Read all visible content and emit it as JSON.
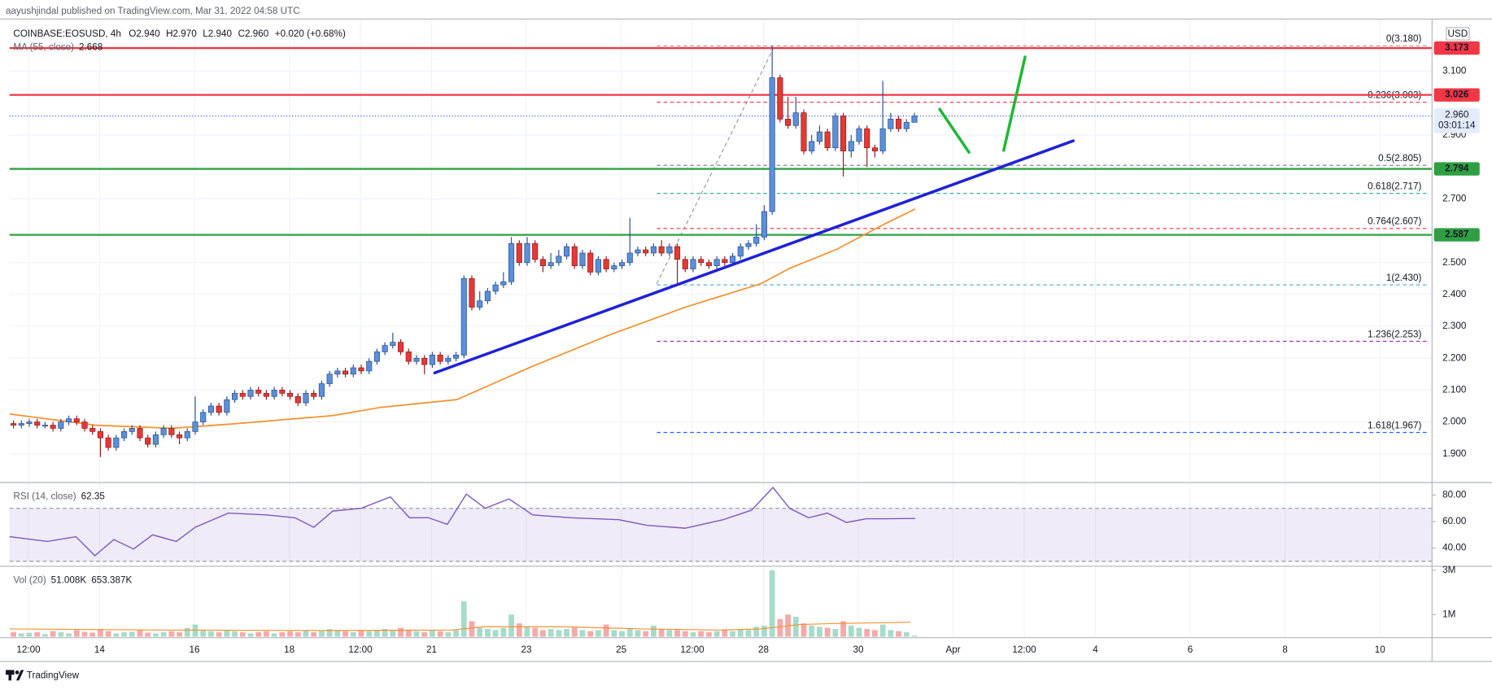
{
  "header": {
    "publisher": "aayushjindal published on TradingView.com, Mar 31, 2022 04:58 UTC",
    "brand": "TradingView"
  },
  "chart_data": {
    "type": "candlestick",
    "symbol": "COINBASE:EOSUSD, 4h",
    "ohlc_text": [
      "O2.940",
      "H2.970",
      "L2.940",
      "C2.960",
      "+0.020 (+0.68%)"
    ],
    "currency": "USD",
    "xlim": [
      0,
      180
    ],
    "xticks": [
      {
        "value": 2.4,
        "label": "12:00"
      },
      {
        "value": 11.4,
        "label": "14"
      },
      {
        "value": 23.4,
        "label": "16"
      },
      {
        "value": 35.4,
        "label": "18"
      },
      {
        "value": 44.4,
        "label": "12:00"
      },
      {
        "value": 53.4,
        "label": "21"
      },
      {
        "value": 65.4,
        "label": "23"
      },
      {
        "value": 77.4,
        "label": "25"
      },
      {
        "value": 86.4,
        "label": "12:00"
      },
      {
        "value": 95.4,
        "label": "28"
      },
      {
        "value": 107.4,
        "label": "30"
      },
      {
        "value": 119.4,
        "label": "Apr"
      },
      {
        "value": 128.4,
        "label": "12:00"
      },
      {
        "value": 137.4,
        "label": "4"
      },
      {
        "value": 149.4,
        "label": "6"
      },
      {
        "value": 161.4,
        "label": "8"
      },
      {
        "value": 173.4,
        "label": "10"
      }
    ],
    "ylim": [
      1.816,
      3.264
    ],
    "yticks": [
      {
        "value": 3.1,
        "label": "3.100"
      },
      {
        "value": 2.9,
        "label": "2.900"
      },
      {
        "value": 2.7,
        "label": "2.700"
      },
      {
        "value": 2.5,
        "label": "2.500"
      },
      {
        "value": 2.4,
        "label": "2.400"
      },
      {
        "value": 2.3,
        "label": "2.300"
      },
      {
        "value": 2.2,
        "label": "2.200"
      },
      {
        "value": 2.1,
        "label": "2.100"
      },
      {
        "value": 2.0,
        "label": "2.000"
      },
      {
        "value": 1.9,
        "label": "1.900"
      }
    ],
    "grid": true,
    "up_color": "#5b8fd9",
    "down_color": "#e53935",
    "open": [
      1.995,
      1.99,
      1.995,
      2.0,
      1.99,
      1.99,
      1.98,
      2.0,
      2.01,
      2.0,
      1.98,
      1.97,
      1.95,
      1.92,
      1.95,
      1.97,
      1.98,
      1.95,
      1.93,
      1.96,
      1.98,
      1.96,
      1.95,
      1.97,
      2.0,
      2.03,
      2.05,
      2.03,
      2.07,
      2.09,
      2.08,
      2.1,
      2.09,
      2.08,
      2.1,
      2.09,
      2.08,
      2.06,
      2.09,
      2.08,
      2.12,
      2.15,
      2.16,
      2.15,
      2.17,
      2.16,
      2.19,
      2.22,
      2.24,
      2.25,
      2.22,
      2.19,
      2.2,
      2.18,
      2.21,
      2.19,
      2.2,
      2.21,
      2.45,
      2.36,
      2.38,
      2.41,
      2.43,
      2.44,
      2.56,
      2.5,
      2.56,
      2.51,
      2.49,
      2.5,
      2.52,
      2.55,
      2.49,
      2.53,
      2.47,
      2.51,
      2.48,
      2.49,
      2.5,
      2.53,
      2.54,
      2.53,
      2.55,
      2.53,
      2.55,
      2.51,
      2.48,
      2.51,
      2.5,
      2.49,
      2.51,
      2.5,
      2.52,
      2.55,
      2.56,
      2.58,
      2.66,
      3.08,
      2.95,
      2.93,
      2.97,
      2.85,
      2.88,
      2.91,
      2.86,
      2.96,
      2.85,
      2.88,
      2.92,
      2.86,
      2.85,
      2.92,
      2.95,
      2.92,
      2.94
    ],
    "high": [
      2.005,
      2.005,
      2.01,
      2.01,
      2.0,
      2.0,
      2.01,
      2.02,
      2.02,
      2.01,
      1.99,
      1.98,
      1.96,
      1.96,
      1.98,
      1.99,
      1.99,
      1.96,
      1.97,
      1.99,
      1.99,
      1.97,
      1.98,
      2.08,
      2.04,
      2.06,
      2.06,
      2.08,
      2.1,
      2.1,
      2.11,
      2.11,
      2.1,
      2.11,
      2.11,
      2.1,
      2.09,
      2.1,
      2.1,
      2.13,
      2.16,
      2.17,
      2.17,
      2.18,
      2.18,
      2.2,
      2.23,
      2.25,
      2.28,
      2.26,
      2.23,
      2.21,
      2.21,
      2.22,
      2.22,
      2.21,
      2.22,
      2.46,
      2.46,
      2.41,
      2.42,
      2.44,
      2.47,
      2.58,
      2.57,
      2.58,
      2.57,
      2.52,
      2.53,
      2.54,
      2.56,
      2.56,
      2.54,
      2.54,
      2.52,
      2.52,
      2.5,
      2.51,
      2.64,
      2.55,
      2.55,
      2.56,
      2.57,
      2.56,
      2.56,
      2.52,
      2.52,
      2.52,
      2.51,
      2.52,
      2.52,
      2.53,
      2.56,
      2.57,
      2.62,
      2.68,
      3.18,
      3.09,
      3.02,
      3.02,
      2.98,
      2.9,
      2.93,
      2.92,
      2.97,
      2.97,
      2.9,
      2.93,
      2.93,
      2.87,
      3.07,
      2.97,
      2.96,
      2.95,
      2.97
    ],
    "low": [
      1.98,
      1.98,
      1.985,
      1.98,
      1.98,
      1.97,
      1.97,
      1.99,
      1.99,
      1.97,
      1.96,
      1.89,
      1.91,
      1.91,
      1.94,
      1.96,
      1.94,
      1.92,
      1.92,
      1.95,
      1.95,
      1.93,
      1.94,
      1.96,
      1.99,
      2.02,
      2.02,
      2.02,
      2.06,
      2.07,
      2.07,
      2.08,
      2.07,
      2.07,
      2.08,
      2.07,
      2.05,
      2.05,
      2.07,
      2.07,
      2.11,
      2.14,
      2.14,
      2.14,
      2.15,
      2.15,
      2.18,
      2.21,
      2.23,
      2.21,
      2.18,
      2.18,
      2.15,
      2.17,
      2.18,
      2.18,
      2.19,
      2.2,
      2.35,
      2.35,
      2.37,
      2.4,
      2.42,
      2.43,
      2.49,
      2.49,
      2.5,
      2.47,
      2.48,
      2.49,
      2.51,
      2.48,
      2.48,
      2.46,
      2.46,
      2.47,
      2.47,
      2.48,
      2.49,
      2.52,
      2.52,
      2.52,
      2.52,
      2.52,
      2.43,
      2.47,
      2.47,
      2.49,
      2.48,
      2.48,
      2.49,
      2.49,
      2.51,
      2.54,
      2.55,
      2.57,
      2.65,
      2.94,
      2.92,
      2.92,
      2.84,
      2.84,
      2.87,
      2.85,
      2.85,
      2.77,
      2.83,
      2.87,
      2.8,
      2.83,
      2.84,
      2.91,
      2.91,
      2.91,
      2.94
    ],
    "close": [
      1.99,
      1.995,
      2.0,
      1.99,
      1.99,
      1.98,
      2.0,
      2.01,
      2.0,
      1.98,
      1.97,
      1.95,
      1.92,
      1.95,
      1.97,
      1.98,
      1.95,
      1.93,
      1.96,
      1.98,
      1.96,
      1.95,
      1.97,
      2.0,
      2.03,
      2.05,
      2.03,
      2.07,
      2.09,
      2.08,
      2.1,
      2.09,
      2.08,
      2.1,
      2.09,
      2.08,
      2.06,
      2.09,
      2.08,
      2.12,
      2.15,
      2.16,
      2.15,
      2.17,
      2.16,
      2.19,
      2.22,
      2.24,
      2.25,
      2.22,
      2.19,
      2.2,
      2.18,
      2.21,
      2.19,
      2.2,
      2.21,
      2.45,
      2.36,
      2.38,
      2.41,
      2.43,
      2.44,
      2.56,
      2.5,
      2.56,
      2.51,
      2.49,
      2.5,
      2.52,
      2.55,
      2.49,
      2.53,
      2.47,
      2.51,
      2.48,
      2.49,
      2.5,
      2.53,
      2.54,
      2.53,
      2.55,
      2.53,
      2.55,
      2.51,
      2.48,
      2.51,
      2.5,
      2.49,
      2.51,
      2.5,
      2.52,
      2.55,
      2.56,
      2.58,
      2.66,
      3.08,
      2.95,
      2.93,
      2.97,
      2.85,
      2.88,
      2.91,
      2.86,
      2.96,
      2.85,
      2.88,
      2.92,
      2.86,
      2.85,
      2.92,
      2.95,
      2.92,
      2.94,
      2.96
    ],
    "ma": {
      "name": "MA (55, close)",
      "value_label": "2.668",
      "color": "#f5922f",
      "x": [
        0,
        10.8,
        20.5,
        28.9,
        36.1,
        40.9,
        47,
        56.6,
        66.2,
        75.9,
        85.5,
        95.1,
        98.7,
        104.7,
        110.8,
        114.6
      ],
      "values": [
        2.025,
        1.99,
        1.98,
        1.995,
        2.01,
        2.02,
        2.046,
        2.07,
        2.175,
        2.273,
        2.36,
        2.434,
        2.482,
        2.542,
        2.622,
        2.668
      ]
    },
    "levels": [
      {
        "price": 3.173,
        "color": "#f23645"
      },
      {
        "price": 3.026,
        "color": "#f23645"
      },
      {
        "price": 2.794,
        "color": "#2ea043"
      },
      {
        "price": 2.587,
        "color": "#2ea043"
      }
    ],
    "last": {
      "price": 2.96,
      "label": "2.960",
      "countdown": "03:01:14",
      "color": "#2962ff"
    },
    "fib": {
      "x": [
        81.9,
        179.4
      ],
      "levels": [
        {
          "label": "0(3.180)",
          "value": 3.18,
          "color": "#9598a1"
        },
        {
          "label": "0.236(3.003)",
          "value": 3.003,
          "color": "#f23645"
        },
        {
          "label": "0.5(2.805)",
          "value": 2.805,
          "color": "#787b86"
        },
        {
          "label": "0.618(2.717)",
          "value": 2.717,
          "color": "#22ab94"
        },
        {
          "label": "0.764(2.607)",
          "value": 2.607,
          "color": "#f23645"
        },
        {
          "label": "1(2.430)",
          "value": 2.43,
          "color": "#5ab4d6"
        },
        {
          "label": "1.236(2.253)",
          "value": 2.253,
          "color": "#9c27b0"
        },
        {
          "label": "1.618(1.967)",
          "value": 1.967,
          "color": "#2962ff"
        }
      ]
    },
    "fib_base": {
      "x": [
        81.9,
        96.9
      ],
      "y": [
        2.434,
        3.184
      ],
      "color": "#9598a1"
    },
    "trendline": {
      "x": [
        53.8,
        134.6
      ],
      "y": [
        2.154,
        2.882
      ],
      "color": "#1f22d6"
    },
    "arrows": [
      {
        "x": [
          117.7,
          121.4
        ],
        "y": [
          2.981,
          2.846
        ],
        "color": "#1fb835"
      },
      {
        "x": [
          125.8,
          128.5
        ],
        "y": [
          2.852,
          3.145
        ],
        "color": "#1fb835"
      }
    ],
    "rsi": {
      "name": "RSI (14, close)",
      "value_label": "62.35",
      "color": "#7e57c2",
      "ylim": [
        27,
        88
      ],
      "yticks": [
        {
          "value": 80,
          "label": "80.00"
        },
        {
          "value": 60,
          "label": "60.00"
        },
        {
          "value": 40,
          "label": "40.00"
        }
      ],
      "band": [
        30,
        70
      ],
      "x": [
        0,
        4.8,
        8.4,
        10.8,
        13.2,
        15.7,
        18.1,
        21.1,
        23.5,
        27.7,
        32.5,
        36.1,
        38.5,
        40.9,
        44.5,
        48.2,
        50.6,
        53,
        55.4,
        57.8,
        60.2,
        63.2,
        66.2,
        71,
        77.1,
        80.7,
        85.5,
        90.3,
        93.9,
        96.6,
        98.7,
        101.1,
        103.5,
        105.9,
        108.4,
        110.8,
        114.6
      ],
      "values": [
        48.6,
        45,
        48.6,
        34.3,
        46.4,
        39.3,
        50,
        45,
        55.7,
        66.4,
        65,
        62.9,
        55.7,
        67.9,
        70,
        78.6,
        62.9,
        62.9,
        57.9,
        80.7,
        70,
        77.1,
        65,
        62.9,
        61.4,
        57.1,
        55,
        61.4,
        68.6,
        85.7,
        70,
        62.9,
        66.4,
        59.3,
        62.1,
        62.1,
        62.35
      ]
    },
    "volume": {
      "name": "Vol (20)",
      "legend": [
        "51.008K",
        "653.387K"
      ],
      "up_color": "#a7dbc9",
      "down_color": "#f5a9a9",
      "ylim": [
        0,
        3.05
      ],
      "yticks": [
        {
          "value": 3,
          "label": "3M"
        },
        {
          "value": 1,
          "label": "1M"
        }
      ],
      "values": [
        0.2,
        0.15,
        0.18,
        0.2,
        0.12,
        0.25,
        0.2,
        0.15,
        0.3,
        0.22,
        0.18,
        0.35,
        0.25,
        0.15,
        0.2,
        0.22,
        0.3,
        0.18,
        0.15,
        0.2,
        0.25,
        0.2,
        0.4,
        0.55,
        0.3,
        0.25,
        0.2,
        0.3,
        0.25,
        0.2,
        0.15,
        0.2,
        0.25,
        0.15,
        0.2,
        0.25,
        0.2,
        0.3,
        0.2,
        0.25,
        0.35,
        0.3,
        0.25,
        0.2,
        0.3,
        0.25,
        0.3,
        0.35,
        0.3,
        0.4,
        0.3,
        0.25,
        0.2,
        0.3,
        0.25,
        0.2,
        0.3,
        1.6,
        0.7,
        0.4,
        0.35,
        0.3,
        0.4,
        1.0,
        0.6,
        0.45,
        0.4,
        0.3,
        0.35,
        0.3,
        0.35,
        0.4,
        0.3,
        0.25,
        0.3,
        0.55,
        0.3,
        0.25,
        0.4,
        0.3,
        0.25,
        0.5,
        0.35,
        0.3,
        0.3,
        0.25,
        0.2,
        0.25,
        0.2,
        0.25,
        0.3,
        0.25,
        0.35,
        0.3,
        0.45,
        0.5,
        3.0,
        0.8,
        1.0,
        0.9,
        0.6,
        0.5,
        0.45,
        0.4,
        0.35,
        0.7,
        0.5,
        0.4,
        0.35,
        0.3,
        0.55,
        0.3,
        0.25,
        0.2,
        0.051
      ],
      "ma": {
        "color": "#f5922f",
        "x": [
          0,
          20,
          40,
          56,
          60,
          70,
          80,
          90,
          95,
          100,
          105,
          114
        ],
        "values": [
          0.35,
          0.3,
          0.28,
          0.3,
          0.45,
          0.45,
          0.35,
          0.3,
          0.35,
          0.55,
          0.6,
          0.653
        ]
      }
    }
  }
}
